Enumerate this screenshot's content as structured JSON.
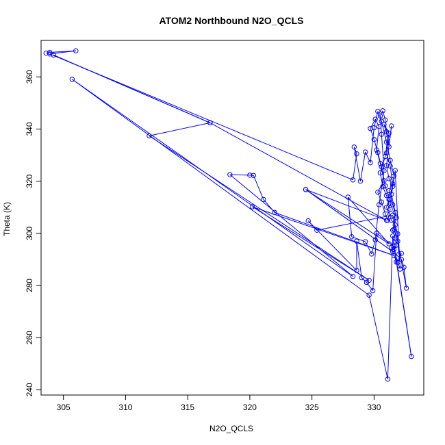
{
  "chart_data": {
    "type": "line",
    "title": "ATOM2 Northbound N2O_QCLS",
    "xlabel": "N2O_QCLS",
    "ylabel": "Theta (K)",
    "xlim": [
      303.2,
      334.0
    ],
    "ylim": [
      238.0,
      374.0
    ],
    "xticks": [
      305,
      310,
      315,
      320,
      325,
      330
    ],
    "yticks": [
      240,
      260,
      280,
      300,
      320,
      340,
      360
    ],
    "grid": false,
    "legend": "none",
    "markers": "open-circle",
    "color": "#0000ff",
    "series": [
      {
        "points": [
          [
            303.6,
            369.1
          ],
          [
            303.9,
            369.4
          ],
          [
            306.0,
            370.0
          ],
          [
            303.9,
            368.8
          ],
          [
            328.3,
            320.5
          ],
          [
            328.6,
            330.5
          ],
          [
            328.4,
            333.1
          ],
          [
            328.9,
            320.0
          ],
          [
            329.3,
            331.2
          ],
          [
            329.7,
            327.1
          ],
          [
            330.0,
            340.5
          ],
          [
            330.3,
            346.8
          ],
          [
            330.6,
            343.0
          ],
          [
            331.0,
            335.0
          ],
          [
            331.3,
            328.0
          ],
          [
            331.6,
            322.0
          ],
          [
            331.4,
            315.0
          ],
          [
            331.7,
            308.0
          ],
          [
            331.6,
            301.5
          ],
          [
            331.9,
            297.0
          ],
          [
            332.0,
            292.0
          ],
          [
            332.2,
            290.0
          ],
          [
            332.4,
            287.0
          ],
          [
            332.6,
            279.0
          ],
          [
            331.5,
            307.0
          ],
          [
            325.4,
            301.2
          ],
          [
            324.7,
            304.8
          ],
          [
            328.6,
            285.8
          ],
          [
            328.6,
            297.0
          ],
          [
            329.0,
            283.0
          ],
          [
            329.4,
            281.2
          ],
          [
            329.9,
            278.0
          ],
          [
            330.2,
            300.0
          ],
          [
            331.6,
            295.0
          ],
          [
            333.0,
            252.8
          ],
          [
            331.5,
            299.0
          ],
          [
            331.1,
            244.1
          ],
          [
            329.6,
            276.3
          ],
          [
            305.7,
            359.1
          ],
          [
            328.3,
            283.5
          ],
          [
            318.4,
            322.5
          ],
          [
            320.0,
            322.3
          ],
          [
            320.3,
            322.2
          ],
          [
            321.1,
            313.0
          ],
          [
            322.0,
            308.0
          ],
          [
            331.6,
            291.5
          ],
          [
            320.2,
            310.2
          ],
          [
            329.6,
            282.0
          ],
          [
            311.9,
            337.4
          ],
          [
            316.8,
            342.4
          ],
          [
            304.2,
            368.4
          ],
          [
            316.8,
            342.4
          ],
          [
            331.0,
            305.0
          ],
          [
            324.5,
            316.8
          ],
          [
            331.5,
            293.0
          ],
          [
            324.5,
            316.8
          ],
          [
            331.2,
            296.0
          ],
          [
            327.9,
            313.9
          ],
          [
            328.2,
            298.7
          ],
          [
            329.3,
            296.8
          ],
          [
            329.8,
            292.1
          ],
          [
            330.1,
            297.5
          ],
          [
            330.4,
            311.0
          ],
          [
            330.8,
            324.0
          ],
          [
            330.6,
            338.0
          ],
          [
            330.5,
            345.0
          ],
          [
            330.7,
            347.0
          ],
          [
            330.9,
            343.5
          ],
          [
            331.0,
            339.0
          ],
          [
            331.2,
            333.2
          ],
          [
            331.4,
            341.2
          ],
          [
            331.0,
            326.0
          ],
          [
            331.2,
            321.0
          ],
          [
            331.5,
            318.0
          ],
          [
            331.2,
            313.0
          ],
          [
            331.0,
            310.0
          ],
          [
            331.4,
            305.0
          ],
          [
            331.7,
            303.2
          ],
          [
            331.9,
            299.8
          ],
          [
            331.8,
            295.5
          ],
          [
            331.6,
            293.8
          ],
          [
            331.9,
            288.9
          ],
          [
            332.1,
            286.3
          ],
          [
            331.7,
            324.1
          ],
          [
            331.3,
            311.5
          ],
          [
            330.9,
            318.2
          ],
          [
            330.6,
            325.5
          ],
          [
            330.3,
            331.0
          ],
          [
            330.0,
            336.0
          ],
          [
            329.7,
            340.2
          ],
          [
            330.1,
            343.8
          ],
          [
            330.4,
            341.0
          ],
          [
            330.2,
            332.0
          ],
          [
            330.5,
            326.8
          ],
          [
            330.8,
            320.2
          ],
          [
            330.3,
            315.8
          ],
          [
            330.6,
            312.0
          ],
          [
            330.9,
            307.5
          ],
          [
            331.1,
            305.0
          ],
          [
            331.3,
            309.2
          ],
          [
            331.0,
            314.5
          ],
          [
            330.7,
            317.9
          ],
          [
            330.5,
            323.2
          ],
          [
            330.9,
            329.5
          ],
          [
            331.1,
            336.5
          ],
          [
            330.8,
            341.8
          ],
          [
            331.2,
            338.4
          ],
          [
            331.0,
            330.8
          ],
          [
            331.3,
            325.8
          ],
          [
            331.5,
            319.0
          ],
          [
            331.2,
            316.4
          ],
          [
            331.5,
            311.0
          ],
          [
            331.8,
            306.0
          ],
          [
            331.5,
            301.2
          ],
          [
            331.7,
            298.2
          ],
          [
            331.4,
            294.6
          ],
          [
            331.8,
            289.0
          ],
          [
            332.2,
            292.3
          ]
        ]
      }
    ]
  }
}
